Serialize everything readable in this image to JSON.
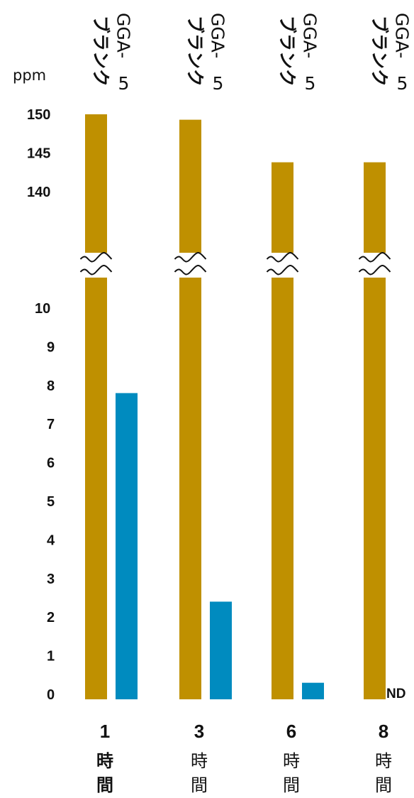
{
  "chart_data": {
    "type": "bar",
    "ylabel": "ppm",
    "y_upper_ticks": [
      "150",
      "145",
      "140"
    ],
    "y_lower_ticks": [
      "10",
      "9",
      "8",
      "7",
      "6",
      "5",
      "4",
      "3",
      "2",
      "1",
      "0"
    ],
    "y_upper_range": [
      135,
      150
    ],
    "y_lower_range": [
      0,
      10
    ],
    "axis_break": true,
    "categories": [
      {
        "num": "1",
        "line1": "時",
        "line2": "間",
        "bold": true
      },
      {
        "num": "3",
        "line1": "時",
        "line2": "間",
        "bold": false
      },
      {
        "num": "6",
        "line1": "時",
        "line2": "間",
        "bold": false
      },
      {
        "num": "8",
        "line1": "時",
        "line2": "間",
        "bold": false
      }
    ],
    "series": [
      {
        "name": "ブランク",
        "color": "#bf9000",
        "values": [
          150,
          149.3,
          143.8,
          143.8
        ]
      },
      {
        "name": "GGA-5",
        "color": "#008bbf",
        "values": [
          7.8,
          2.4,
          0.3,
          null
        ]
      }
    ],
    "series_labels": {
      "blank": "ブランク",
      "gga_a": "GGA-",
      "gga_b": "5"
    },
    "annotation": "ND"
  }
}
